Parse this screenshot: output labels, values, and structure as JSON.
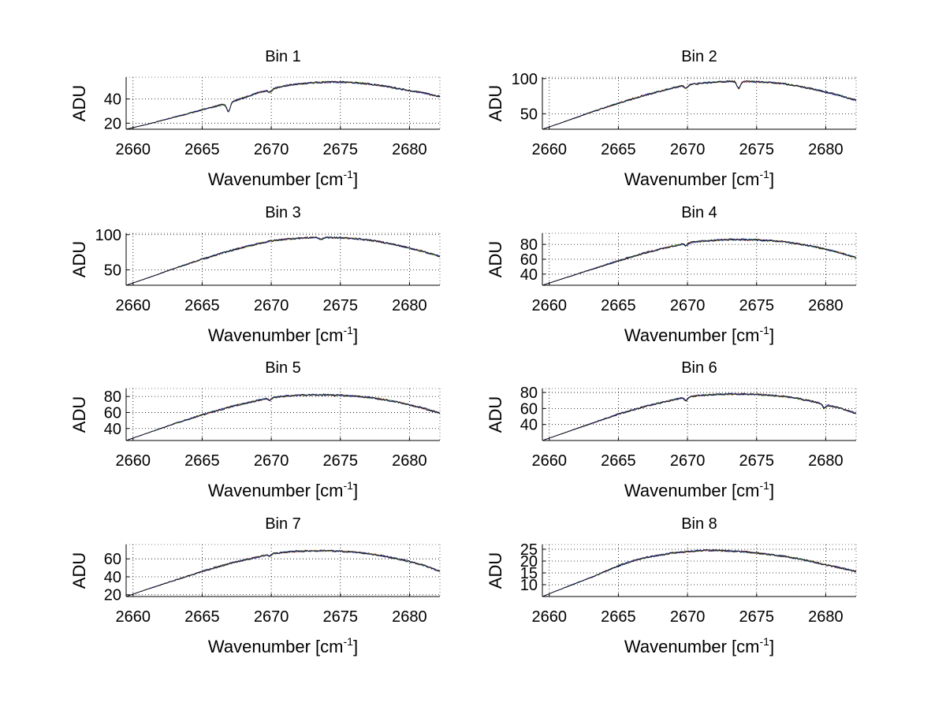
{
  "chart_data": [
    {
      "type": "line",
      "title": "Bin 1",
      "xlabel": "Wavenumber [cm",
      "xlabel_sup": "-1",
      "xlabel_end": "]",
      "ylabel": "ADU",
      "xlim": [
        2659.5,
        2682.2
      ],
      "ylim": [
        15,
        58
      ],
      "xticks": [
        2660,
        2665,
        2670,
        2675,
        2680
      ],
      "yticks": [
        20,
        40
      ],
      "grid": true,
      "curve": {
        "x": [
          2659.5,
          2661,
          2663,
          2665,
          2666,
          2667,
          2668,
          2669,
          2670,
          2671,
          2672,
          2673,
          2674,
          2675,
          2676,
          2677,
          2678,
          2679,
          2680,
          2681,
          2682.2
        ],
        "y": [
          15,
          19,
          25,
          31,
          34,
          37,
          41,
          45,
          48,
          51,
          52.5,
          53.5,
          54,
          54,
          53.5,
          52.5,
          51,
          49,
          47,
          45,
          42
        ]
      },
      "dips": [
        {
          "x": 2666.9,
          "depth": 7
        },
        {
          "x": 2669.9,
          "depth": 2
        }
      ]
    },
    {
      "type": "line",
      "title": "Bin 2",
      "xlabel": "Wavenumber [cm",
      "xlabel_sup": "-1",
      "xlabel_end": "]",
      "ylabel": "ADU",
      "xlim": [
        2659.5,
        2682.2
      ],
      "ylim": [
        28,
        102
      ],
      "xticks": [
        2660,
        2665,
        2670,
        2675,
        2680
      ],
      "yticks": [
        50,
        100
      ],
      "grid": true,
      "curve": {
        "x": [
          2659.5,
          2661,
          2663,
          2665,
          2667,
          2669,
          2670,
          2671,
          2672,
          2673,
          2674,
          2675,
          2676,
          2677,
          2678,
          2679,
          2680,
          2681,
          2682.2
        ],
        "y": [
          28,
          38,
          52,
          65,
          77,
          87,
          91,
          93.5,
          95,
          96,
          96,
          95.5,
          94.5,
          92.5,
          89.5,
          85.5,
          81,
          76,
          69
        ]
      },
      "dips": [
        {
          "x": 2673.7,
          "depth": 10
        },
        {
          "x": 2669.9,
          "depth": 4
        }
      ]
    },
    {
      "type": "line",
      "title": "Bin 3",
      "xlabel": "Wavenumber [cm",
      "xlabel_sup": "-1",
      "xlabel_end": "]",
      "ylabel": "ADU",
      "xlim": [
        2659.5,
        2682.2
      ],
      "ylim": [
        28,
        102
      ],
      "xticks": [
        2660,
        2665,
        2670,
        2675,
        2680
      ],
      "yticks": [
        50,
        100
      ],
      "grid": true,
      "curve": {
        "x": [
          2659.5,
          2661,
          2663,
          2665,
          2667,
          2669,
          2670,
          2671,
          2672,
          2673,
          2674,
          2675,
          2676,
          2677,
          2678,
          2679,
          2680,
          2681,
          2682.2
        ],
        "y": [
          28,
          38,
          52,
          65,
          77,
          87,
          91,
          93.5,
          95,
          96,
          96,
          95.5,
          94.5,
          92.5,
          89.5,
          85.5,
          81,
          76,
          69
        ]
      },
      "dips": [
        {
          "x": 2673.6,
          "depth": 3
        }
      ]
    },
    {
      "type": "line",
      "title": "Bin 4",
      "xlabel": "Wavenumber [cm",
      "xlabel_sup": "-1",
      "xlabel_end": "]",
      "ylabel": "ADU",
      "xlim": [
        2659.5,
        2682.2
      ],
      "ylim": [
        25,
        95
      ],
      "xticks": [
        2660,
        2665,
        2670,
        2675,
        2680
      ],
      "yticks": [
        40,
        60,
        80
      ],
      "grid": true,
      "curve": {
        "x": [
          2659.5,
          2661,
          2663,
          2665,
          2667,
          2669,
          2670,
          2671,
          2672,
          2673,
          2674,
          2675,
          2676,
          2677,
          2678,
          2679,
          2680,
          2681,
          2682.2
        ],
        "y": [
          25,
          34,
          46,
          58,
          69,
          78,
          82,
          84.5,
          85.5,
          86.5,
          86.5,
          86,
          85,
          83.5,
          81,
          77.5,
          73.5,
          69,
          62
        ]
      },
      "dips": [
        {
          "x": 2669.9,
          "depth": 3
        }
      ]
    },
    {
      "type": "line",
      "title": "Bin 5",
      "xlabel": "Wavenumber [cm",
      "xlabel_sup": "-1",
      "xlabel_end": "]",
      "ylabel": "ADU",
      "xlim": [
        2659.5,
        2682.2
      ],
      "ylim": [
        25,
        90
      ],
      "xticks": [
        2660,
        2665,
        2670,
        2675,
        2680
      ],
      "yticks": [
        40,
        60,
        80
      ],
      "grid": true,
      "curve": {
        "x": [
          2659.5,
          2661,
          2663,
          2665,
          2667,
          2669,
          2670,
          2671,
          2672,
          2673,
          2674,
          2675,
          2676,
          2677,
          2678,
          2679,
          2680,
          2681,
          2682.2
        ],
        "y": [
          25,
          34,
          46,
          57,
          67,
          75,
          78.5,
          80.5,
          81.5,
          82,
          82,
          81.5,
          80.5,
          79,
          76.5,
          73.5,
          69.5,
          65.5,
          59
        ]
      },
      "dips": [
        {
          "x": 2669.9,
          "depth": 3
        }
      ]
    },
    {
      "type": "line",
      "title": "Bin 6",
      "xlabel": "Wavenumber [cm",
      "xlabel_sup": "-1",
      "xlabel_end": "]",
      "ylabel": "ADU",
      "xlim": [
        2659.5,
        2682.2
      ],
      "ylim": [
        20,
        85
      ],
      "xticks": [
        2660,
        2665,
        2670,
        2675,
        2680
      ],
      "yticks": [
        40,
        60,
        80
      ],
      "grid": true,
      "curve": {
        "x": [
          2659.5,
          2661,
          2663,
          2665,
          2667,
          2669,
          2670,
          2671,
          2672,
          2673,
          2674,
          2675,
          2676,
          2677,
          2678,
          2679,
          2680,
          2681,
          2682.2
        ],
        "y": [
          20,
          29,
          41,
          53,
          63,
          71,
          74.5,
          76.5,
          77.5,
          78,
          78,
          77.5,
          76.5,
          75,
          72.5,
          69,
          65,
          60.5,
          54
        ]
      },
      "dips": [
        {
          "x": 2669.9,
          "depth": 4
        },
        {
          "x": 2679.9,
          "depth": 5
        }
      ]
    },
    {
      "type": "line",
      "title": "Bin 7",
      "xlabel": "Wavenumber [cm",
      "xlabel_sup": "-1",
      "xlabel_end": "]",
      "ylabel": "ADU",
      "xlim": [
        2659.5,
        2682.2
      ],
      "ylim": [
        18,
        76
      ],
      "xticks": [
        2660,
        2665,
        2670,
        2675,
        2680
      ],
      "yticks": [
        20,
        40,
        60
      ],
      "grid": true,
      "curve": {
        "x": [
          2659.5,
          2661,
          2663,
          2665,
          2667,
          2669,
          2670,
          2671,
          2672,
          2673,
          2674,
          2675,
          2676,
          2677,
          2678,
          2679,
          2680,
          2681,
          2682.2
        ],
        "y": [
          18,
          26,
          36,
          46,
          55,
          62,
          65.5,
          67.5,
          68.5,
          69,
          69,
          68.5,
          67.5,
          66,
          63.5,
          60.5,
          57,
          53,
          46
        ]
      },
      "dips": [
        {
          "x": 2669.9,
          "depth": 2
        }
      ]
    },
    {
      "type": "line",
      "title": "Bin 8",
      "xlabel": "Wavenumber [cm",
      "xlabel_sup": "-1",
      "xlabel_end": "]",
      "ylabel": "ADU",
      "xlim": [
        2659.5,
        2682.2
      ],
      "ylim": [
        5,
        27
      ],
      "xticks": [
        2660,
        2665,
        2670,
        2675,
        2680
      ],
      "yticks": [
        10,
        15,
        20,
        25
      ],
      "grid": true,
      "curve": {
        "x": [
          2659.5,
          2661,
          2663,
          2665,
          2666,
          2667,
          2668,
          2669,
          2670,
          2671,
          2672,
          2673,
          2674,
          2675,
          2676,
          2677,
          2678,
          2679,
          2680,
          2681,
          2682.2
        ],
        "y": [
          5,
          8.5,
          13,
          18,
          20,
          21.5,
          22.5,
          23.5,
          24,
          24.5,
          24.5,
          24.3,
          24,
          23.4,
          22.7,
          22,
          21,
          19.8,
          18.4,
          17.2,
          15.6
        ]
      },
      "dips": []
    }
  ]
}
